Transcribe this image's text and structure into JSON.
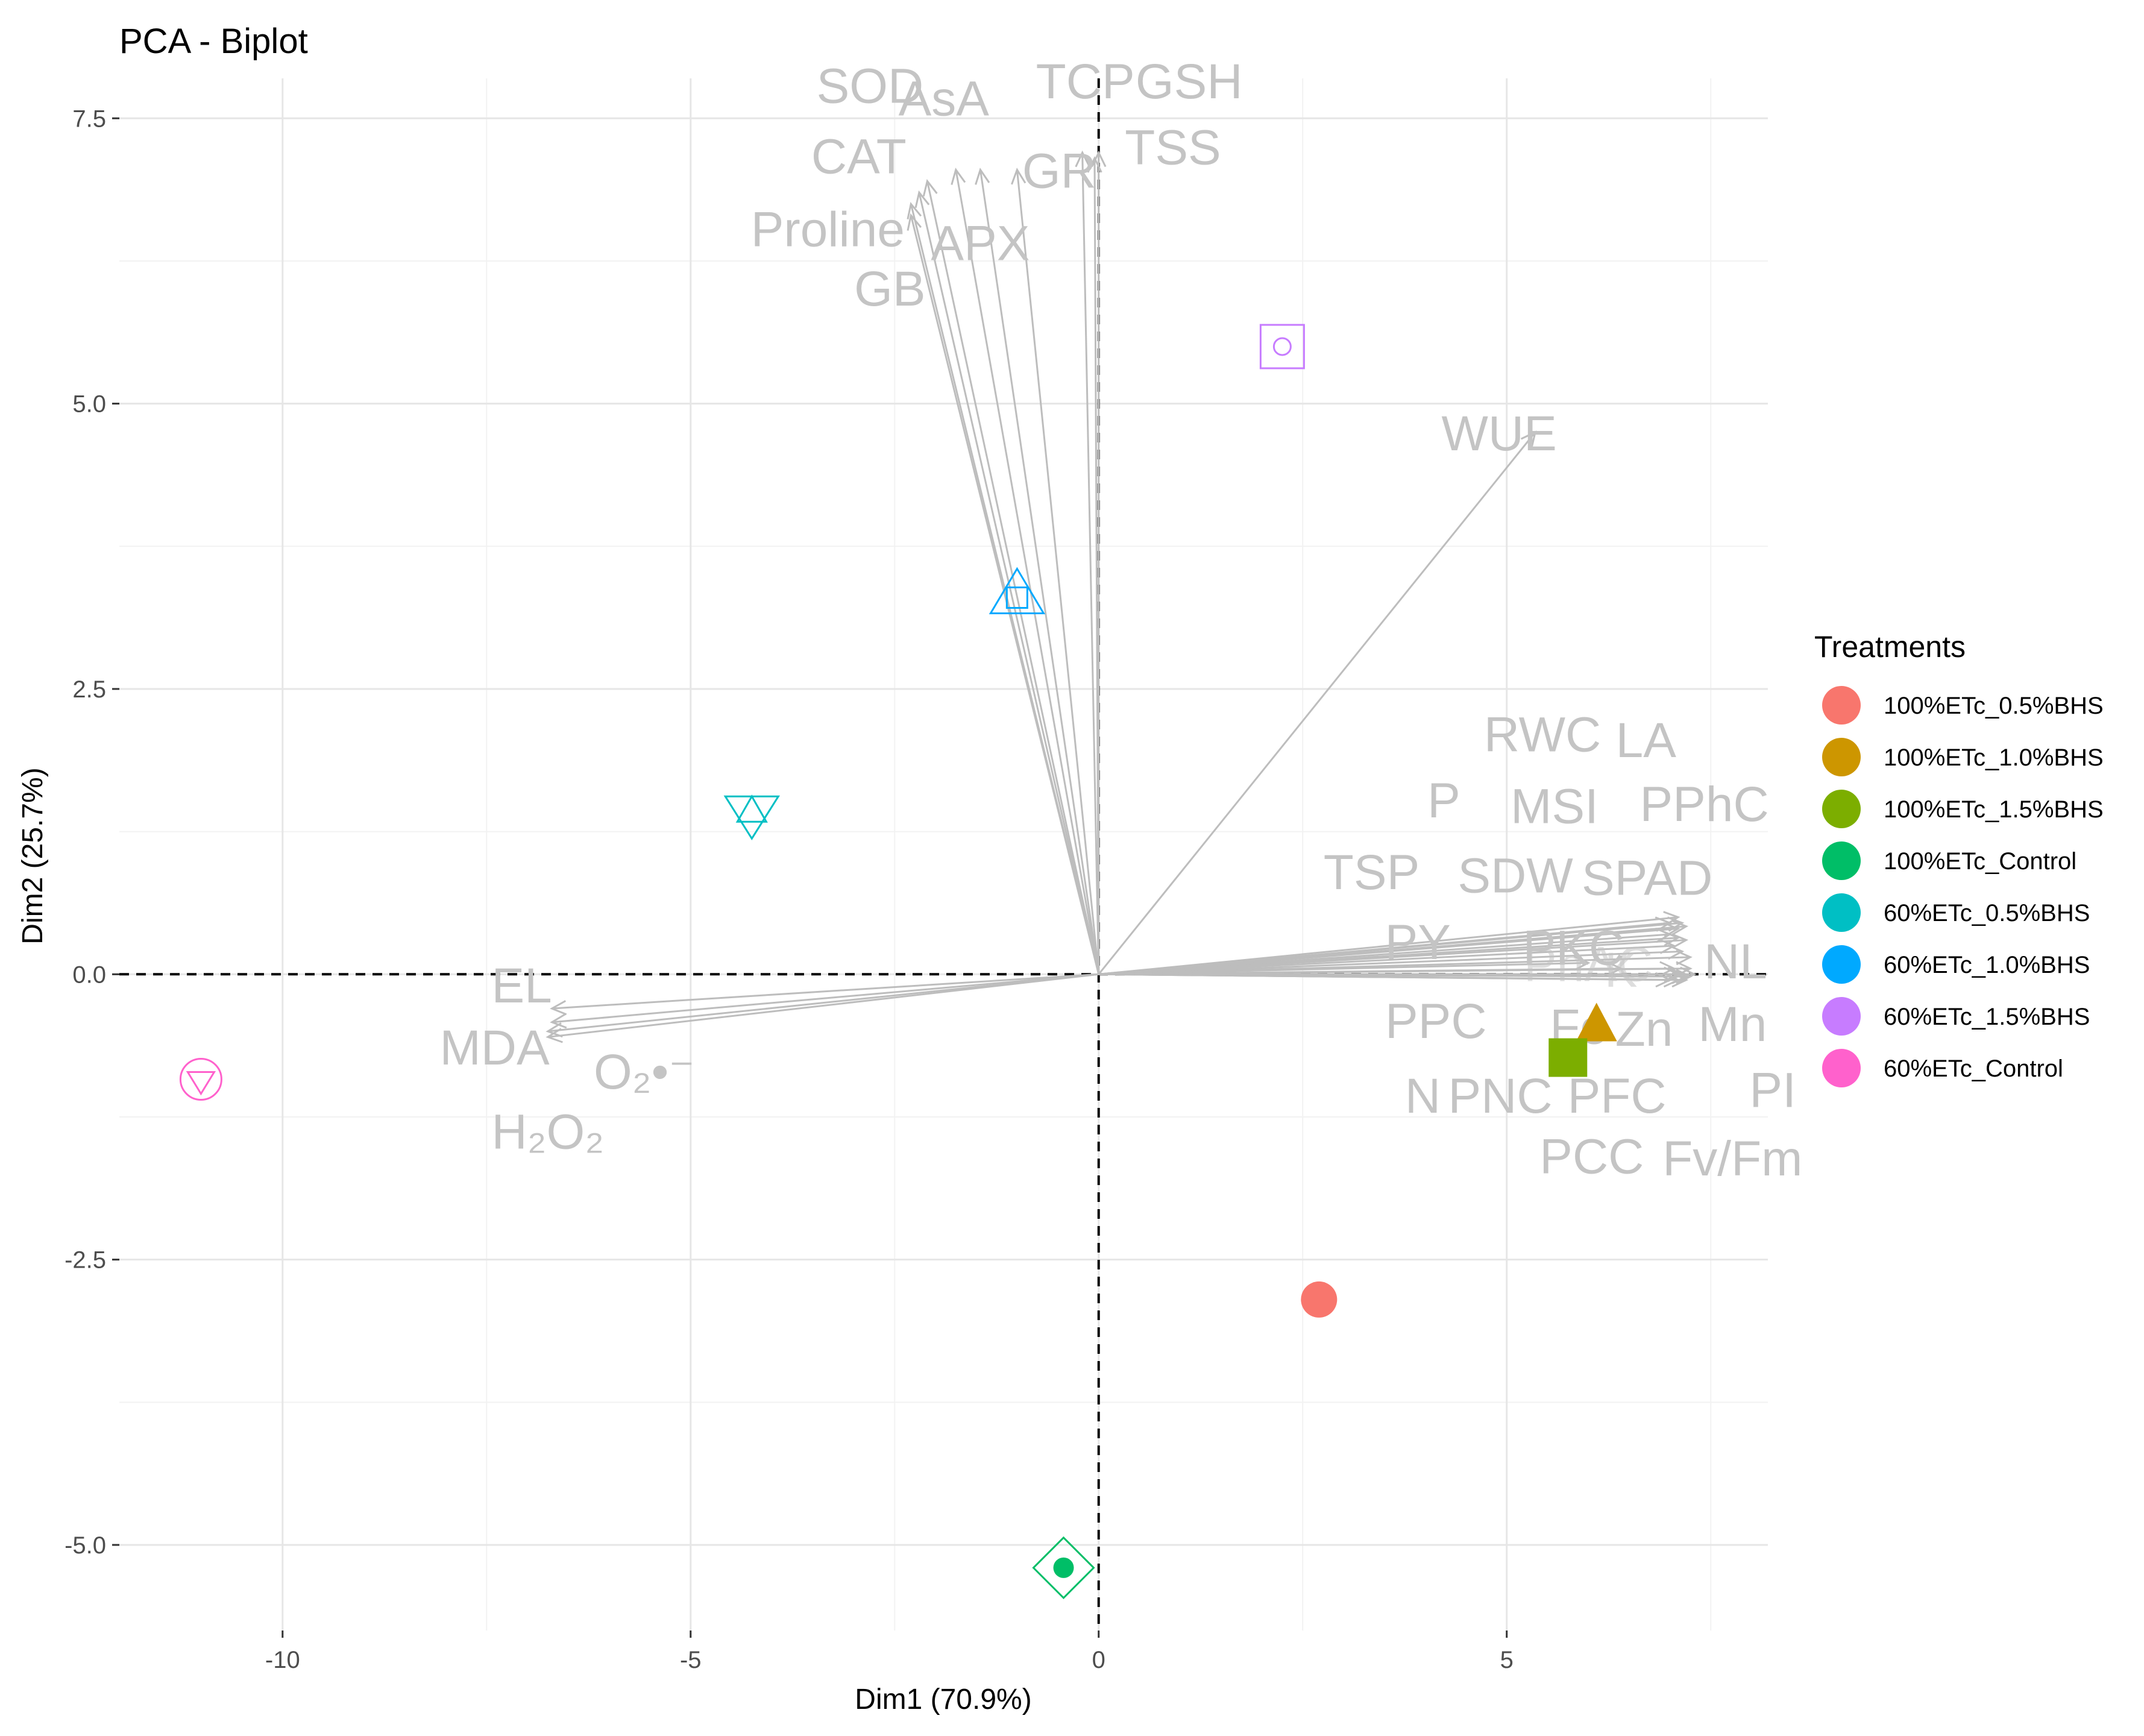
{
  "chart_data": {
    "type": "scatter",
    "subtype": "pca-biplot",
    "title": "PCA - Biplot",
    "xlabel": "Dim1 (70.9%)",
    "ylabel": "Dim2 (25.7%)",
    "xlim": [
      -12,
      8.2
    ],
    "ylim": [
      -5.75,
      7.85
    ],
    "xticks": [
      -10,
      -5,
      0,
      5
    ],
    "xtick_labels": [
      "-10",
      "-5",
      "0",
      "5"
    ],
    "yticks": [
      -5.0,
      -2.5,
      0.0,
      2.5,
      5.0,
      7.5
    ],
    "ytick_labels": [
      "-5.0",
      "-2.5",
      "0.0",
      "2.5",
      "5.0",
      "7.5"
    ],
    "grid": true,
    "reference_lines": {
      "x": 0,
      "y": 0,
      "style": "dashed"
    },
    "legend": {
      "title": "Treatments",
      "placement": "right",
      "entries": [
        {
          "label": "100%ETc_0.5%BHS",
          "color": "#F8766D"
        },
        {
          "label": "100%ETc_1.0%BHS",
          "color": "#CD9600"
        },
        {
          "label": "100%ETc_1.5%BHS",
          "color": "#7CAE00"
        },
        {
          "label": "100%ETc_Control",
          "color": "#00BE67"
        },
        {
          "label": "60%ETc_0.5%BHS",
          "color": "#00BFC4"
        },
        {
          "label": "60%ETc_1.0%BHS",
          "color": "#00A9FF"
        },
        {
          "label": "60%ETc_1.5%BHS",
          "color": "#C77CFF"
        },
        {
          "label": "60%ETc_Control",
          "color": "#FF61CC"
        }
      ]
    },
    "individuals": [
      {
        "treatment": "100%ETc_0.5%BHS",
        "x": 2.7,
        "y": -2.85,
        "shape": "filled-circle",
        "color": "#F8766D"
      },
      {
        "treatment": "100%ETc_1.0%BHS",
        "x": 6.1,
        "y": -0.45,
        "shape": "filled-triangle",
        "color": "#CD9600"
      },
      {
        "treatment": "100%ETc_1.5%BHS",
        "x": 5.75,
        "y": -0.73,
        "shape": "filled-square",
        "color": "#7CAE00"
      },
      {
        "treatment": "100%ETc_Control",
        "x": -0.43,
        "y": -5.2,
        "shape": "diamond-dot",
        "color": "#00BE67"
      },
      {
        "treatment": "60%ETc_0.5%BHS",
        "x": -4.25,
        "y": 1.4,
        "shape": "down-up-triangles",
        "color": "#00BFC4"
      },
      {
        "treatment": "60%ETc_1.0%BHS",
        "x": -1.0,
        "y": 3.3,
        "shape": "triangle-square",
        "color": "#00A9FF"
      },
      {
        "treatment": "60%ETc_1.5%BHS",
        "x": 2.25,
        "y": 5.5,
        "shape": "square-circle",
        "color": "#C77CFF"
      },
      {
        "treatment": "60%ETc_Control",
        "x": -11.0,
        "y": -0.92,
        "shape": "circle-down-triangle",
        "color": "#FF61CC"
      }
    ],
    "variables": [
      {
        "name": "SOD",
        "x": -2.1,
        "y": 6.95
      },
      {
        "name": "CAT",
        "x": -2.2,
        "y": 6.85
      },
      {
        "name": "Proline",
        "x": -2.3,
        "y": 6.75
      },
      {
        "name": "GB",
        "x": -2.3,
        "y": 6.65
      },
      {
        "name": "AsA",
        "x": -1.75,
        "y": 7.05
      },
      {
        "name": "APX",
        "x": -1.45,
        "y": 7.05
      },
      {
        "name": "GR",
        "x": -1.0,
        "y": 7.05
      },
      {
        "name": "TCP",
        "x": -0.2,
        "y": 7.2
      },
      {
        "name": "GSH",
        "x": 0.0,
        "y": 7.2
      },
      {
        "name": "TSS",
        "x": -0.05,
        "y": 7.15
      },
      {
        "name": "WUE",
        "x": 5.35,
        "y": 4.75
      },
      {
        "name": "RWC",
        "x": 7.1,
        "y": 0.5
      },
      {
        "name": "LA",
        "x": 7.15,
        "y": 0.45
      },
      {
        "name": "P",
        "x": 7.0,
        "y": 0.45
      },
      {
        "name": "MSI",
        "x": 7.1,
        "y": 0.4
      },
      {
        "name": "PPhC",
        "x": 7.2,
        "y": 0.42
      },
      {
        "name": "TSP",
        "x": 7.0,
        "y": 0.35
      },
      {
        "name": "SDW",
        "x": 7.1,
        "y": 0.32
      },
      {
        "name": "SPAD",
        "x": 7.2,
        "y": 0.3
      },
      {
        "name": "PY",
        "x": 7.05,
        "y": 0.25
      },
      {
        "name": "PKC",
        "x": 7.15,
        "y": 0.2
      },
      {
        "name": "NL",
        "x": 7.25,
        "y": 0.15
      },
      {
        "name": "PPC",
        "x": 7.05,
        "y": 0.05
      },
      {
        "name": "Fe",
        "x": 7.1,
        "y": 0.0
      },
      {
        "name": "Zn",
        "x": 7.2,
        "y": -0.02
      },
      {
        "name": "Mn",
        "x": 7.25,
        "y": 0.05
      },
      {
        "name": "N",
        "x": 7.0,
        "y": -0.05
      },
      {
        "name": "PNC",
        "x": 7.1,
        "y": -0.05
      },
      {
        "name": "PFC",
        "x": 7.2,
        "y": -0.05
      },
      {
        "name": "PI",
        "x": 7.3,
        "y": 0.0
      },
      {
        "name": "PCC",
        "x": 7.15,
        "y": 0.0
      },
      {
        "name": "Fv/Fm",
        "x": 7.25,
        "y": -0.02
      },
      {
        "name": "PhAC",
        "x": 6.0,
        "y": 0.1
      },
      {
        "name": "K",
        "x": 6.4,
        "y": 0.05
      },
      {
        "name": "EL",
        "x": -6.7,
        "y": -0.3
      },
      {
        "name": "MDA",
        "x": -6.7,
        "y": -0.42
      },
      {
        "name": "O₂•⁻",
        "x": -6.75,
        "y": -0.5
      },
      {
        "name": "H₂O₂",
        "x": -6.75,
        "y": -0.55
      }
    ]
  }
}
